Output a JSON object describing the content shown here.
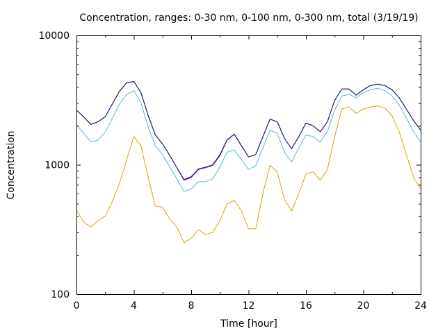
{
  "chart_data": {
    "type": "line",
    "title": "Concentration, ranges: 0-30 nm, 0-100 nm, 0-300 nm, total (3/19/19)",
    "xlabel": "Time [hour]",
    "ylabel": "Concentration",
    "xlim": [
      0,
      24
    ],
    "ylim": [
      100,
      10000
    ],
    "yscale": "log",
    "xticks": [
      0,
      4,
      8,
      12,
      16,
      20,
      24
    ],
    "yticks": [
      100,
      1000,
      10000
    ],
    "ytick_labels": [
      "100",
      "1000",
      "10000"
    ],
    "grid": false,
    "legend": "none",
    "x": [
      0,
      0.5,
      1,
      1.5,
      2,
      2.5,
      3,
      3.5,
      4,
      4.5,
      5,
      5.5,
      6,
      6.5,
      7,
      7.5,
      8,
      8.5,
      9,
      9.5,
      10,
      10.5,
      11,
      11.5,
      12,
      12.5,
      13,
      13.5,
      14,
      14.5,
      15,
      15.5,
      16,
      16.5,
      17,
      17.5,
      18,
      18.5,
      19,
      19.5,
      20,
      20.5,
      21,
      21.5,
      22,
      22.5,
      23,
      23.5,
      24
    ],
    "series": [
      {
        "color": "#e69f00",
        "values": [
          450,
          360,
          330,
          370,
          400,
          520,
          720,
          1100,
          1650,
          1400,
          800,
          480,
          470,
          380,
          330,
          250,
          270,
          315,
          290,
          300,
          370,
          500,
          530,
          440,
          320,
          320,
          600,
          990,
          880,
          540,
          440,
          600,
          850,
          880,
          760,
          920,
          1650,
          2700,
          2800,
          2500,
          2700,
          2800,
          2850,
          2750,
          2400,
          1800,
          1200,
          800,
          650
        ]
      },
      {
        "color": "#56b4e9",
        "values": [
          2050,
          1750,
          1500,
          1550,
          1780,
          2280,
          2950,
          3500,
          3750,
          3000,
          1950,
          1400,
          1200,
          960,
          780,
          620,
          650,
          740,
          740,
          780,
          960,
          1250,
          1300,
          1100,
          920,
          980,
          1350,
          1850,
          1750,
          1250,
          1050,
          1350,
          1700,
          1650,
          1500,
          1800,
          2650,
          3400,
          3500,
          3300,
          3600,
          3800,
          3900,
          3750,
          3400,
          2900,
          2300,
          1800,
          1500
        ]
      },
      {
        "color": "#009e73",
        "values": [
          2650,
          2350,
          2050,
          2150,
          2350,
          2950,
          3700,
          4300,
          4400,
          3600,
          2400,
          1700,
          1450,
          1180,
          950,
          760,
          800,
          920,
          950,
          990,
          1180,
          1550,
          1720,
          1400,
          1150,
          1200,
          1650,
          2250,
          2150,
          1600,
          1330,
          1650,
          2100,
          2000,
          1800,
          2150,
          3150,
          3850,
          3850,
          3450,
          3800,
          4100,
          4200,
          4100,
          3800,
          3300,
          2700,
          2200,
          1850
        ]
      },
      {
        "color": "#9400d3",
        "values": [
          2650,
          2350,
          2050,
          2150,
          2350,
          2950,
          3700,
          4300,
          4400,
          3600,
          2400,
          1700,
          1450,
          1180,
          950,
          770,
          810,
          930,
          960,
          1000,
          1200,
          1560,
          1730,
          1410,
          1150,
          1200,
          1650,
          2250,
          2150,
          1600,
          1330,
          1650,
          2100,
          2000,
          1800,
          2150,
          3150,
          3850,
          3850,
          3450,
          3800,
          4100,
          4200,
          4100,
          3800,
          3300,
          2700,
          2200,
          1850
        ]
      },
      {
        "color": "#191970",
        "values": [
          2650,
          2350,
          2050,
          2150,
          2350,
          2950,
          3700,
          4300,
          4400,
          3600,
          2400,
          1700,
          1450,
          1180,
          950,
          760,
          800,
          920,
          950,
          990,
          1180,
          1550,
          1720,
          1400,
          1150,
          1200,
          1650,
          2250,
          2150,
          1600,
          1330,
          1650,
          2100,
          2000,
          1800,
          2150,
          3150,
          3850,
          3850,
          3450,
          3800,
          4100,
          4200,
          4100,
          3800,
          3300,
          2700,
          2200,
          1850
        ]
      }
    ]
  }
}
